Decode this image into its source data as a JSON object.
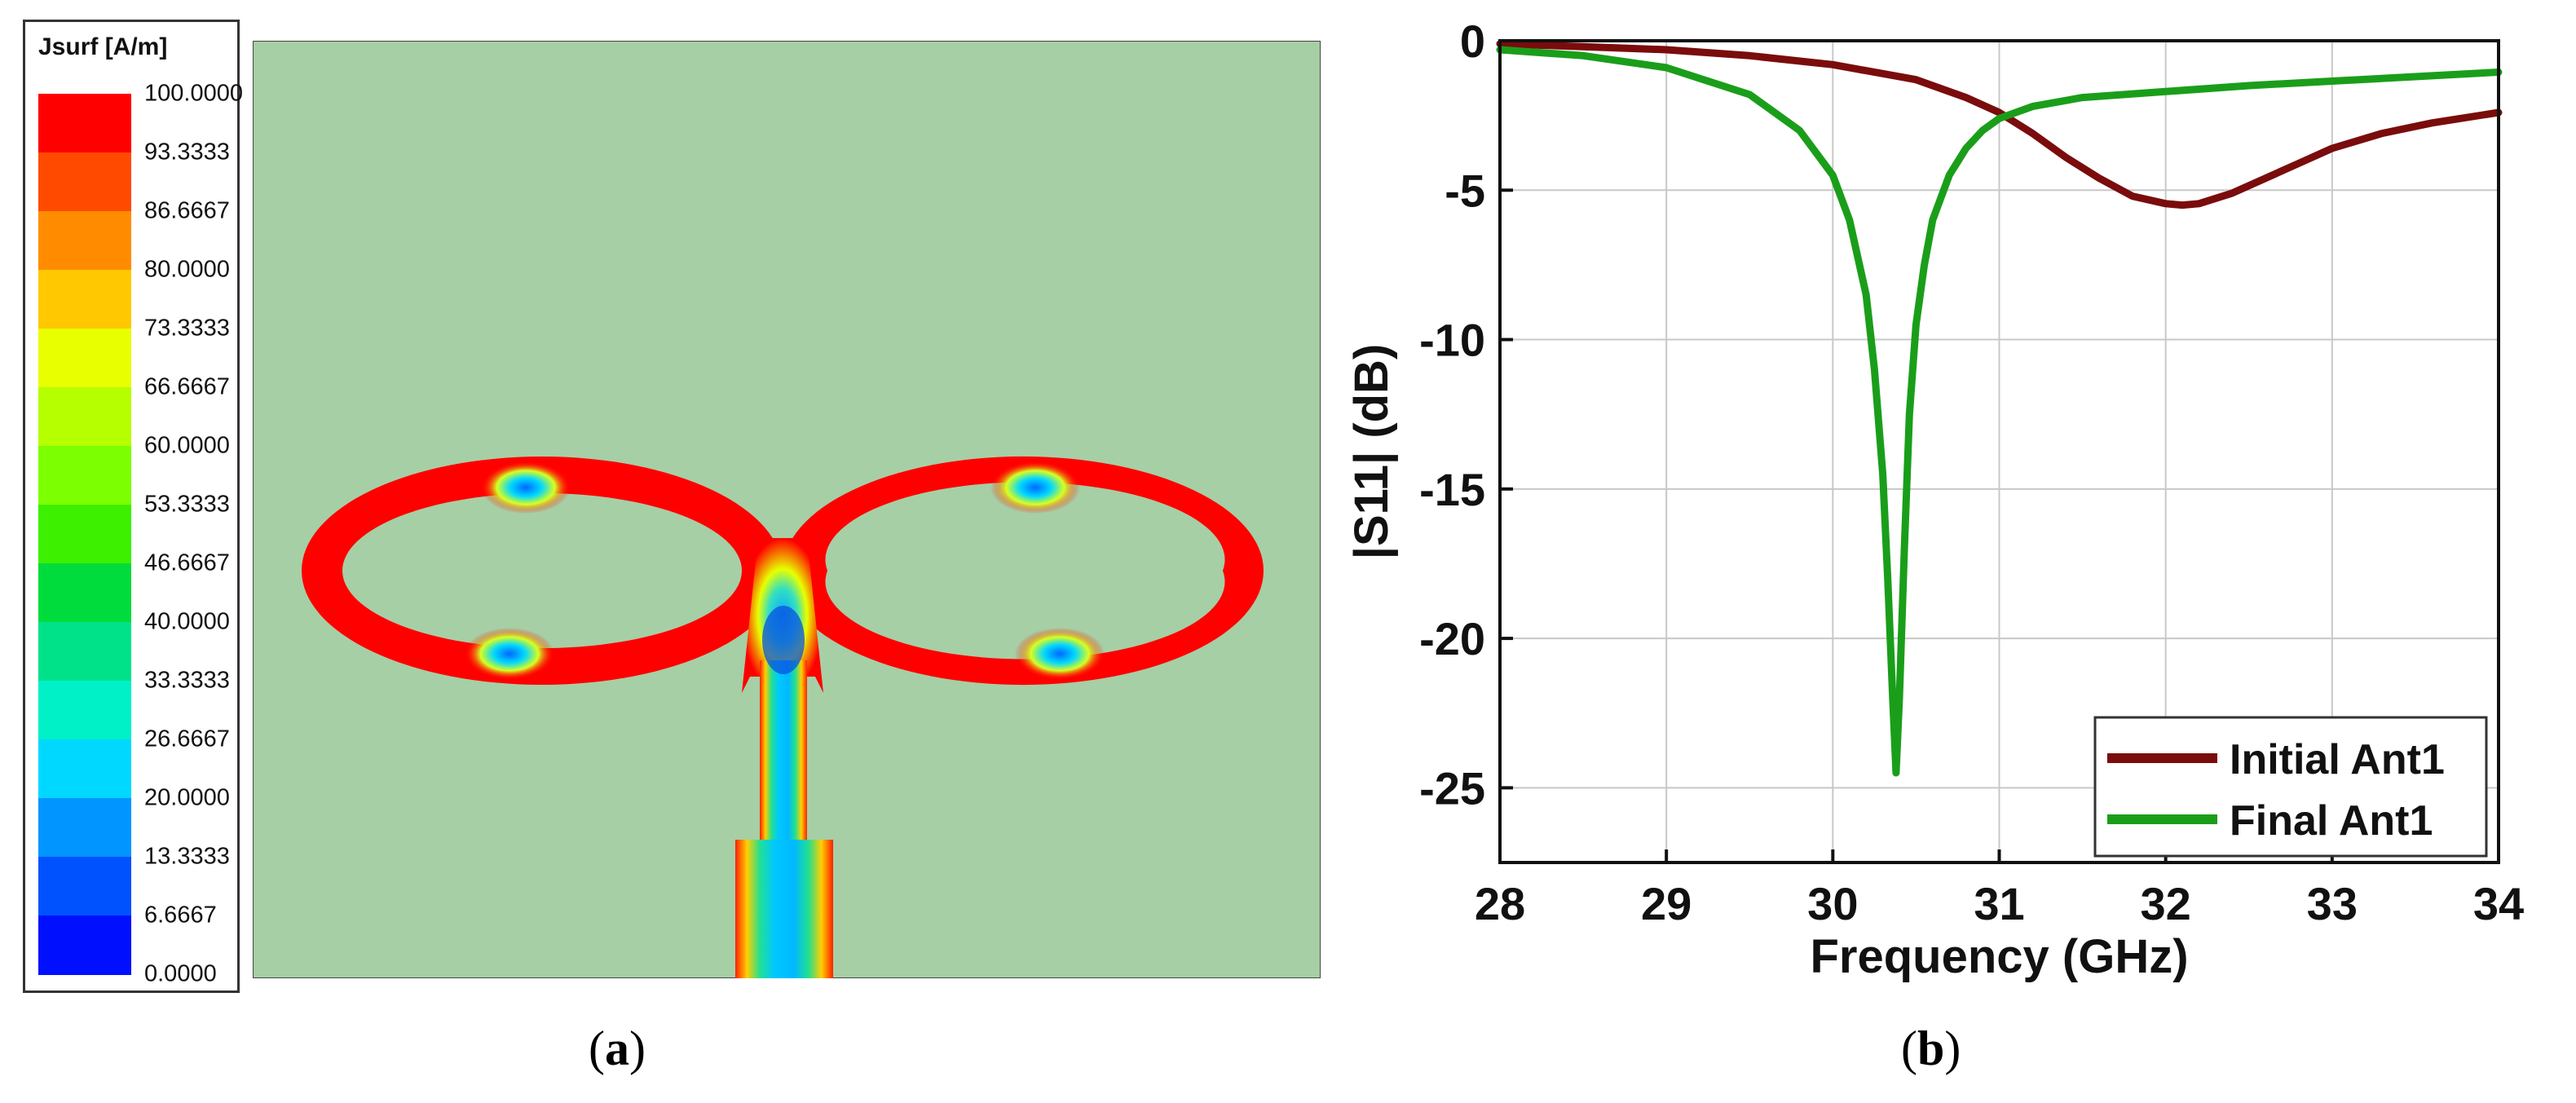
{
  "chart_data": [
    {
      "type": "heatmap",
      "legend_title": "Jsurf [A/m]",
      "colorbar_ticks": [
        "100.0000",
        "93.3333",
        "86.6667",
        "80.0000",
        "73.3333",
        "66.6667",
        "60.0000",
        "53.3333",
        "46.6667",
        "40.0000",
        "33.3333",
        "26.6667",
        "20.0000",
        "13.3333",
        "6.6667",
        "0.0000"
      ],
      "colorbar_colors": [
        "#ff0000",
        "#ff4a00",
        "#ff8c00",
        "#ffc800",
        "#e8ff00",
        "#b5ff00",
        "#7cff00",
        "#3cf000",
        "#00dc3c",
        "#00e28a",
        "#00f0c8",
        "#00d8ff",
        "#0095ff",
        "#0052ff",
        "#0010ff"
      ],
      "background_color": "#a6cfa6",
      "caption": "a"
    },
    {
      "type": "line",
      "xlabel": "Frequency (GHz)",
      "ylabel": "|S11| (dB)",
      "xlim": [
        28,
        34
      ],
      "ylim": [
        -27.5,
        0
      ],
      "x_ticks": [
        28,
        29,
        30,
        31,
        32,
        33,
        34
      ],
      "y_ticks": [
        0,
        -5,
        -10,
        -15,
        -20,
        -25
      ],
      "grid": true,
      "legend_position": "bottom-right",
      "series": [
        {
          "name": "Initial Ant1",
          "color": "#7a0c0c",
          "x": [
            28,
            28.5,
            29,
            29.5,
            30,
            30.5,
            30.8,
            31,
            31.2,
            31.4,
            31.6,
            31.8,
            32,
            32.1,
            32.2,
            32.4,
            32.6,
            32.8,
            33,
            33.3,
            33.6,
            34
          ],
          "y": [
            -0.1,
            -0.2,
            -0.3,
            -0.5,
            -0.8,
            -1.3,
            -1.9,
            -2.4,
            -3.1,
            -3.9,
            -4.6,
            -5.2,
            -5.45,
            -5.5,
            -5.45,
            -5.1,
            -4.6,
            -4.1,
            -3.6,
            -3.1,
            -2.75,
            -2.4
          ]
        },
        {
          "name": "Final Ant1",
          "color": "#1a9e1a",
          "x": [
            28,
            28.5,
            29,
            29.5,
            29.8,
            30,
            30.1,
            30.2,
            30.25,
            30.3,
            30.33,
            30.36,
            30.38,
            30.4,
            30.43,
            30.46,
            30.5,
            30.55,
            30.6,
            30.7,
            30.8,
            30.9,
            31,
            31.2,
            31.5,
            32,
            32.5,
            33,
            33.5,
            34
          ],
          "y": [
            -0.3,
            -0.5,
            -0.9,
            -1.8,
            -3,
            -4.5,
            -6,
            -8.5,
            -11,
            -14.5,
            -18,
            -22,
            -24.5,
            -22,
            -17,
            -12.5,
            -9.5,
            -7.5,
            -6,
            -4.5,
            -3.6,
            -3,
            -2.6,
            -2.2,
            -1.9,
            -1.7,
            -1.5,
            -1.35,
            -1.2,
            -1.05
          ]
        }
      ],
      "caption": "b"
    }
  ]
}
